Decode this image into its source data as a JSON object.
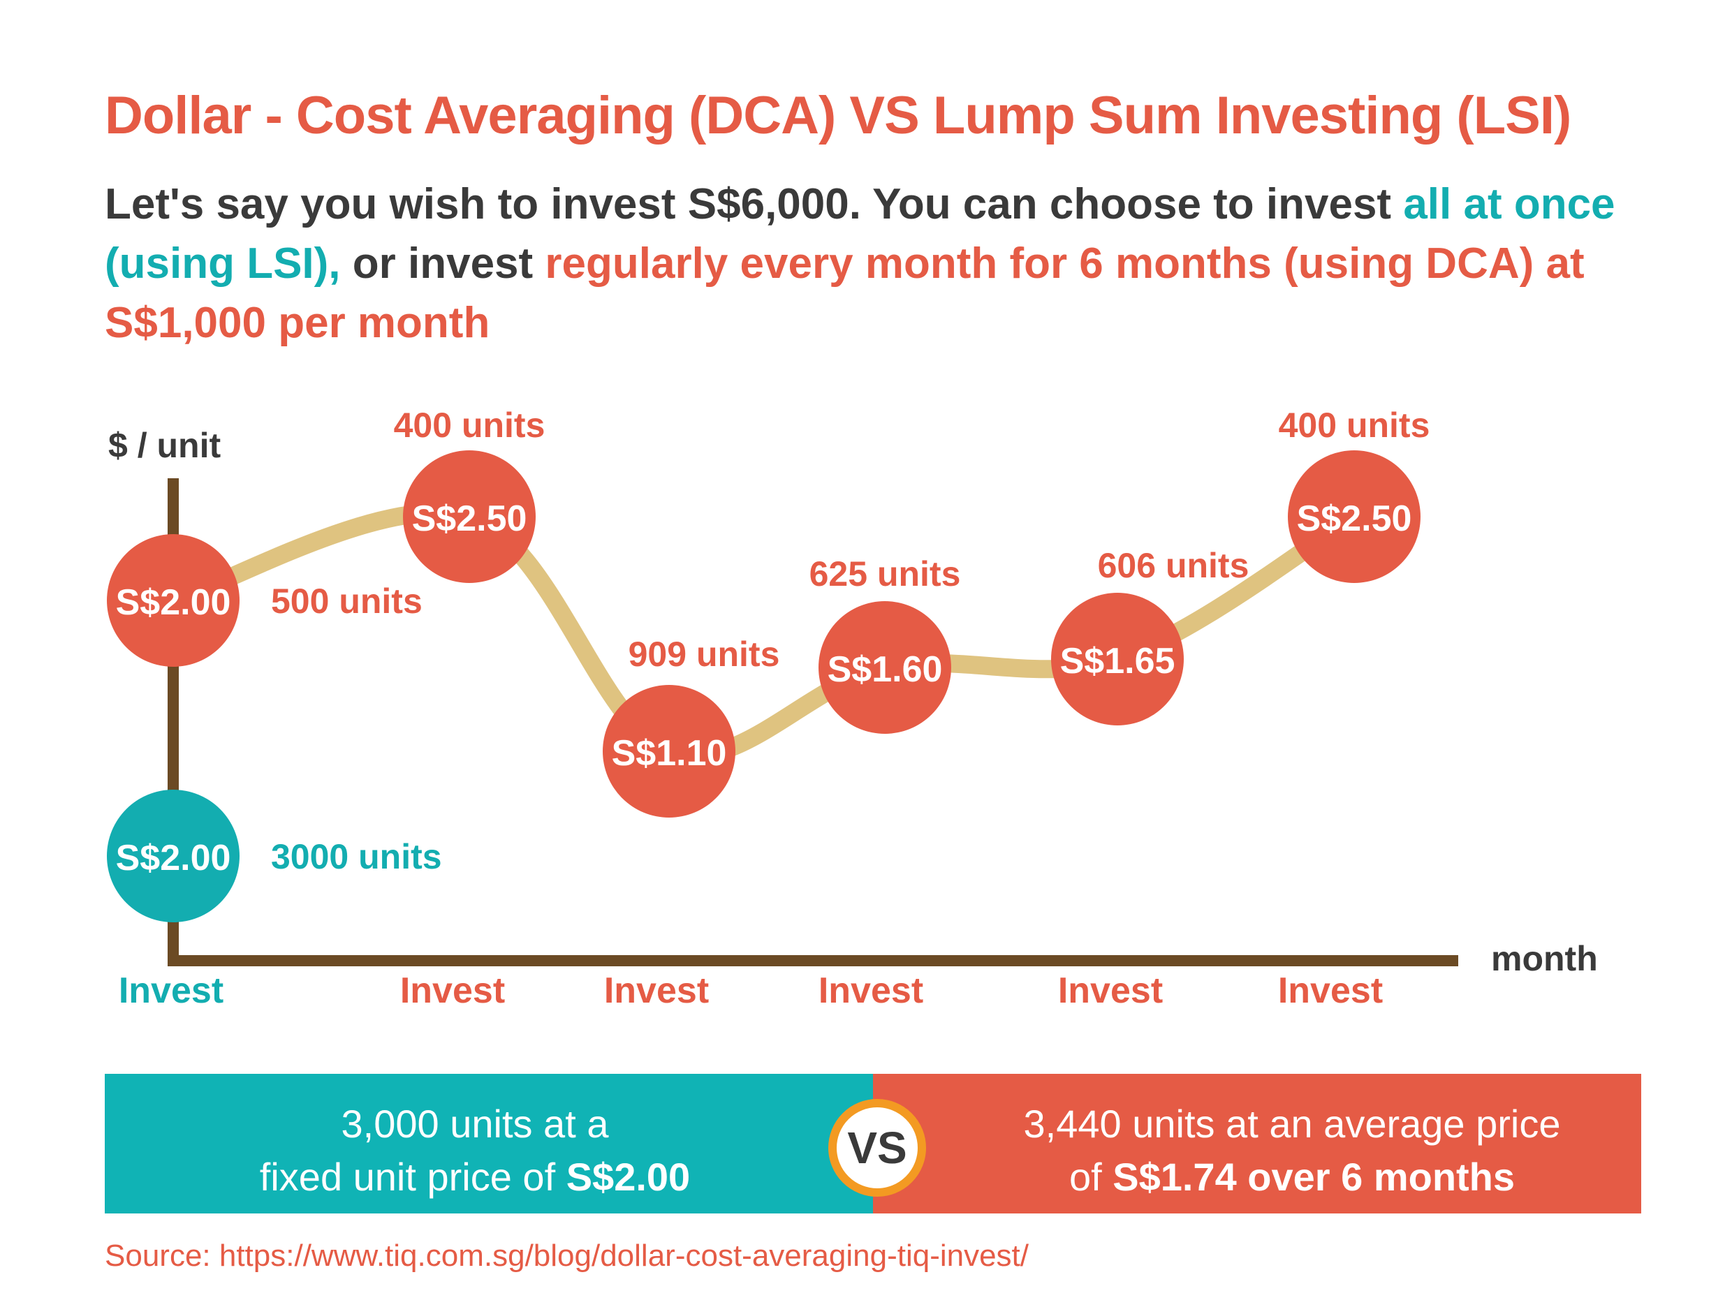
{
  "title": "Dollar - Cost Averaging (DCA) VS Lump Sum Investing (LSI)",
  "intro": {
    "part1": "Let's say you wish to invest S$6,000. You can choose to invest",
    "part2": "all at once (using LSI),",
    "part3": "or invest",
    "part4": "regularly every month for 6 months (using DCA) at S$1,000 per month"
  },
  "chart_data": {
    "type": "line",
    "ylabel": "$ / unit",
    "xlabel": "month",
    "x_tick_label": "Invest",
    "series": [
      {
        "name": "DCA",
        "prices": [
          2.0,
          2.5,
          1.1,
          1.6,
          1.65,
          2.5
        ],
        "price_labels": [
          "S$2.00",
          "S$2.50",
          "S$1.10",
          "S$1.60",
          "S$1.65",
          "S$2.50"
        ],
        "units": [
          500,
          400,
          909,
          625,
          606,
          400
        ],
        "unit_labels": [
          "500 units",
          "400 units",
          "909 units",
          "625 units",
          "606 units",
          "400 units"
        ]
      },
      {
        "name": "LSI",
        "prices": [
          2.0
        ],
        "price_labels": [
          "S$2.00"
        ],
        "units": [
          3000
        ],
        "unit_labels": [
          "3000 units"
        ]
      }
    ],
    "colors": {
      "dca": "#e55b45",
      "lsi": "#13adb0",
      "line": "#dfc380",
      "axis": "#6b4a24"
    }
  },
  "summary": {
    "lsi_line1": "3,000 units at a",
    "lsi_line2_prefix": "fixed unit price of ",
    "lsi_line2_bold": "S$2.00",
    "vs": "VS",
    "dca_line1": "3,440 units at an average price",
    "dca_line2_prefix": "of ",
    "dca_line2_bold": "S$1.74 over 6 months"
  },
  "source": "Source: https://www.tiq.com.sg/blog/dollar-cost-averaging-tiq-invest/"
}
